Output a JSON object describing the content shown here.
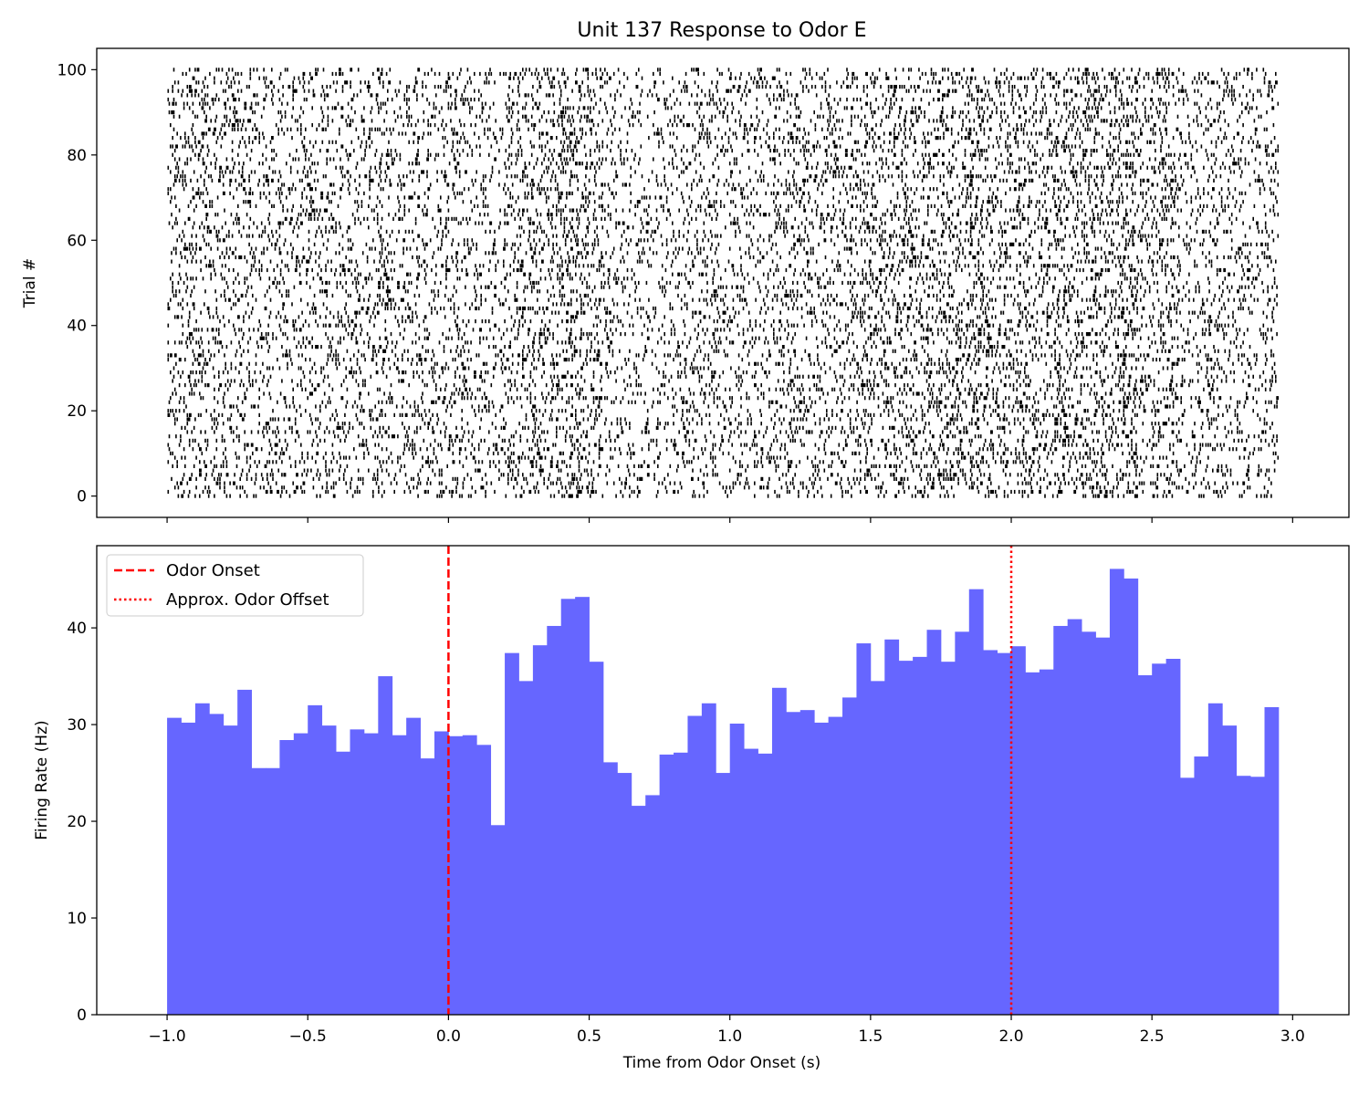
{
  "figure": {
    "title": "Unit 137 Response to Odor E"
  },
  "chart_data": [
    {
      "type": "raster",
      "title": "Unit 137 Response to Odor E",
      "ylabel": "Trial #",
      "xlabel": "",
      "xlim": [
        -1.25,
        3.2
      ],
      "ylim": [
        -5,
        105
      ],
      "yticks": [
        0,
        20,
        40,
        60,
        80,
        100
      ],
      "n_trials": 100,
      "time_window": [
        -1.0,
        3.0
      ],
      "spike_density_note": "roughly uniform baseline before 0 s, dense band after 0.15 s",
      "color": "#000000"
    },
    {
      "type": "bar",
      "title": "",
      "xlabel": "Time from Odor Onset (s)",
      "ylabel": "Firing Rate (Hz)",
      "xlim": [
        -1.25,
        3.2
      ],
      "ylim": [
        0,
        48.5
      ],
      "xticks": [
        "-1.0",
        "-0.5",
        "0.0",
        "0.5",
        "1.0",
        "1.5",
        "2.0",
        "2.5",
        "3.0"
      ],
      "yticks": [
        0,
        10,
        20,
        30,
        40
      ],
      "bin_start": -1.0,
      "bin_width": 0.05,
      "values": [
        30.7,
        30.2,
        32.2,
        31.1,
        29.9,
        33.6,
        25.5,
        25.5,
        28.4,
        29.1,
        32.0,
        29.9,
        27.2,
        29.5,
        29.1,
        35.0,
        28.9,
        30.7,
        26.5,
        29.3,
        28.8,
        28.9,
        27.9,
        19.6,
        37.4,
        34.5,
        38.2,
        40.2,
        43.0,
        43.2,
        36.5,
        26.1,
        25.0,
        21.6,
        22.7,
        26.9,
        27.1,
        30.9,
        32.2,
        25.0,
        30.1,
        27.5,
        27.0,
        33.8,
        31.3,
        31.5,
        30.2,
        30.8,
        32.8,
        38.4,
        34.5,
        38.8,
        36.6,
        37.0,
        39.8,
        36.5,
        39.6,
        44.0,
        37.7,
        37.4,
        38.1,
        35.4,
        35.7,
        40.2,
        40.9,
        39.6,
        39.0,
        46.1,
        45.1,
        35.1,
        36.3,
        36.8,
        24.5,
        26.7,
        32.2,
        29.9,
        24.7,
        24.6,
        31.8
      ],
      "bar_color": "#6666ff",
      "lines": [
        {
          "name": "Odor Onset",
          "x": 0.0,
          "color": "#ff0000",
          "style": "dashed"
        },
        {
          "name": "Approx. Odor Offset",
          "x": 2.0,
          "color": "#ff0000",
          "style": "dotted"
        }
      ],
      "legend_position": "top-left"
    }
  ]
}
